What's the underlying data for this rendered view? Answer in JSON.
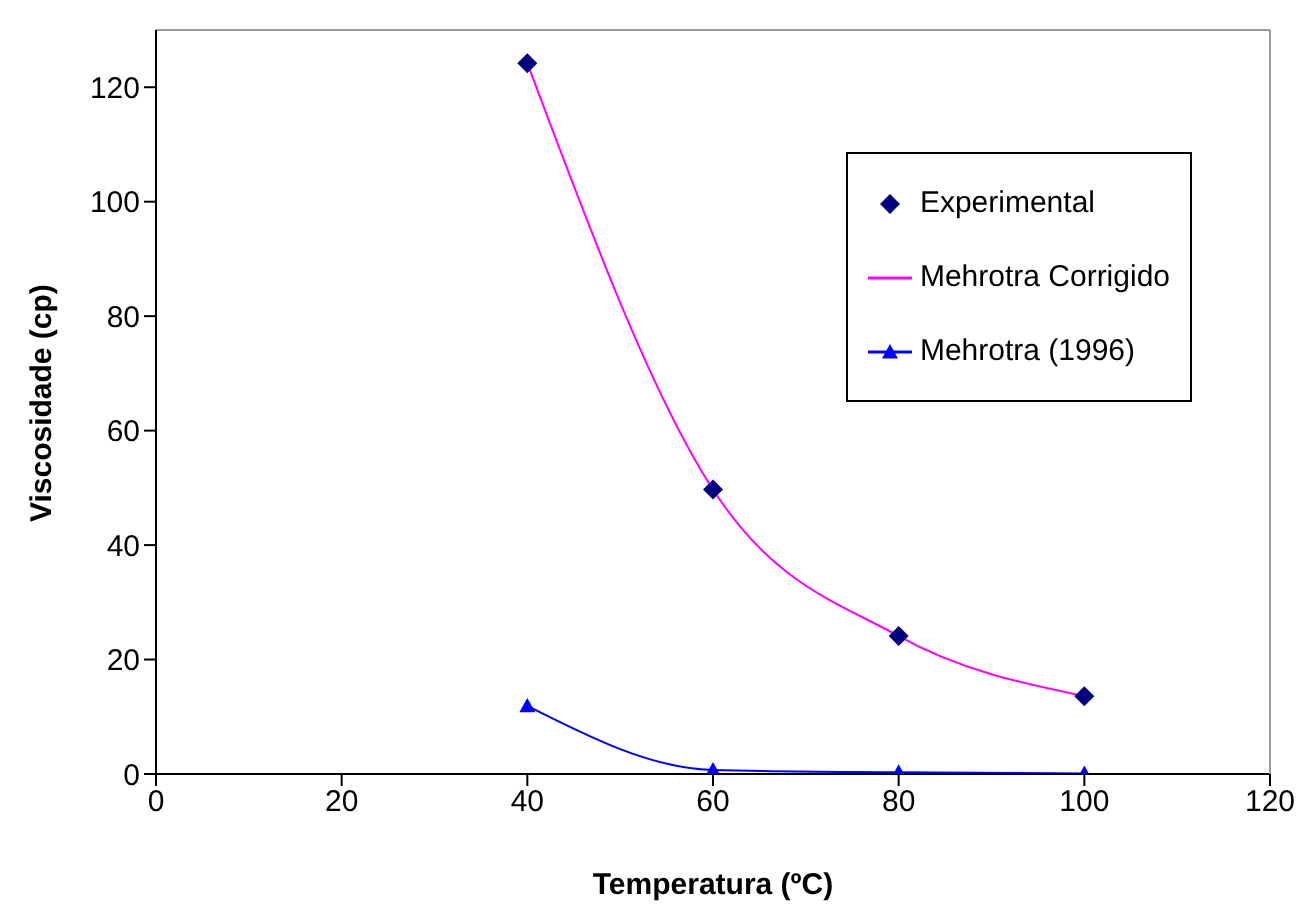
{
  "chart_data": {
    "type": "line",
    "xlabel": "Temperatura (ºC)",
    "ylabel": "Viscosidade (cp)",
    "x": [
      40,
      60,
      80,
      100
    ],
    "series": [
      {
        "name": "Experimental",
        "type": "scatter",
        "marker": "diamond",
        "color": "#000080",
        "values": [
          124.2,
          49.7,
          24.1,
          13.6
        ]
      },
      {
        "name": "Mehrotra Corrigido",
        "marker": "none",
        "color": "#ff00ff",
        "values": [
          124.2,
          49.7,
          24.1,
          13.6
        ]
      },
      {
        "name": "Mehrotra (1996)",
        "marker": "triangle",
        "color": "#0000ff",
        "values": [
          11.9,
          0.7,
          0.3,
          0.1
        ]
      }
    ],
    "xlim": [
      0,
      120
    ],
    "xticks": [
      0,
      20,
      40,
      60,
      80,
      100,
      120
    ],
    "ylim": [
      0,
      130
    ],
    "yticks": [
      0,
      20,
      40,
      60,
      80,
      100,
      120
    ],
    "grid": false,
    "legend": "top right"
  }
}
